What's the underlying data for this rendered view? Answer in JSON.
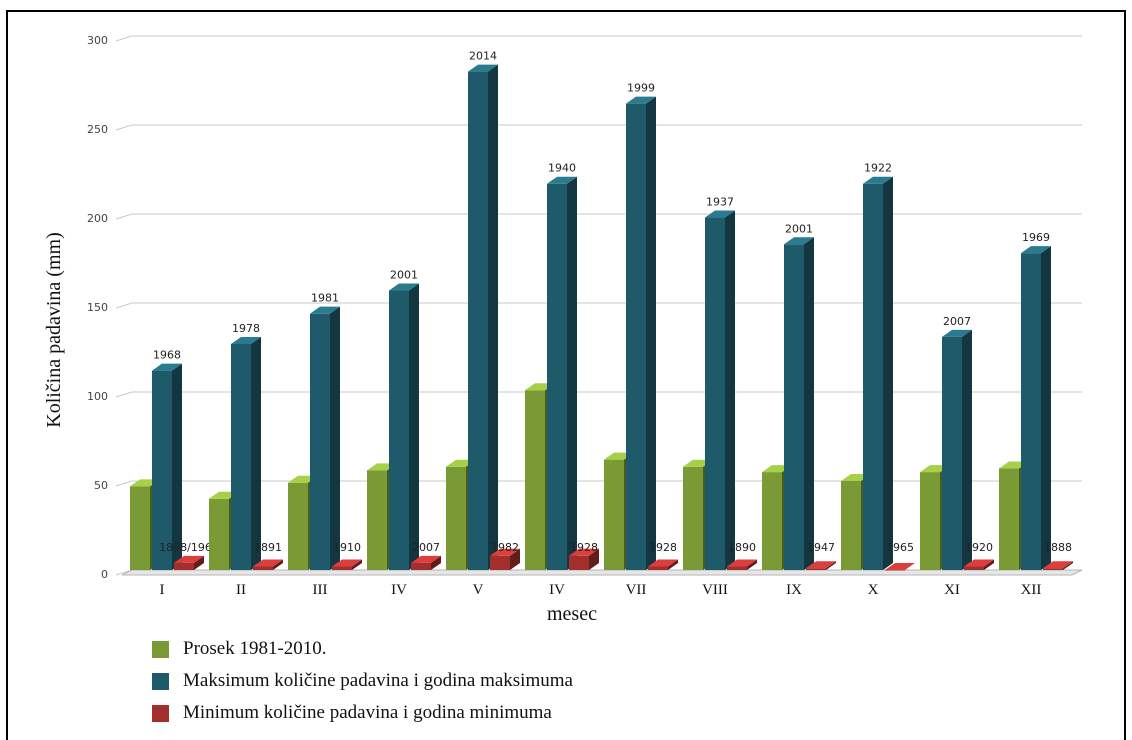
{
  "chart_data": {
    "type": "bar",
    "ylabel": "Količina padavina (mm)",
    "xlabel": "mesec",
    "ylim": [
      0,
      300
    ],
    "yticks": [
      0,
      50,
      100,
      150,
      200,
      250,
      300
    ],
    "grid": true,
    "legend_position": "bottom-left",
    "categories": [
      "I",
      "II",
      "III",
      "IV",
      "V",
      "IV",
      "VII",
      "VIII",
      "IX",
      "X",
      "XI",
      "XII"
    ],
    "series": [
      {
        "name": "Prosek 1981-2010.",
        "color": "#7a9a35",
        "values": [
          47,
          40,
          49,
          56,
          58,
          101,
          62,
          58,
          55,
          50,
          55,
          57
        ]
      },
      {
        "name": "Maksimum količine padavina i godina maksimuma",
        "color": "#1f5a6b",
        "values": [
          112,
          127,
          144,
          157,
          280,
          217,
          262,
          198,
          183,
          217,
          131,
          178
        ],
        "years": [
          "1968",
          "1978",
          "1981",
          "2001",
          "2014",
          "1940",
          "1999",
          "1937",
          "2001",
          "1922",
          "2007",
          "1969"
        ]
      },
      {
        "name": "Minimum količine padavina i godina minimuma",
        "color": "#a32e2e",
        "values": [
          4,
          2,
          2,
          4,
          8,
          8,
          2,
          2,
          1,
          0,
          2,
          1
        ],
        "years": [
          "1898/1964",
          "1891",
          "1910",
          "2007",
          "1982",
          "1928",
          "1928",
          "1890",
          "1947",
          "1965",
          "1920",
          "1888"
        ]
      }
    ]
  }
}
